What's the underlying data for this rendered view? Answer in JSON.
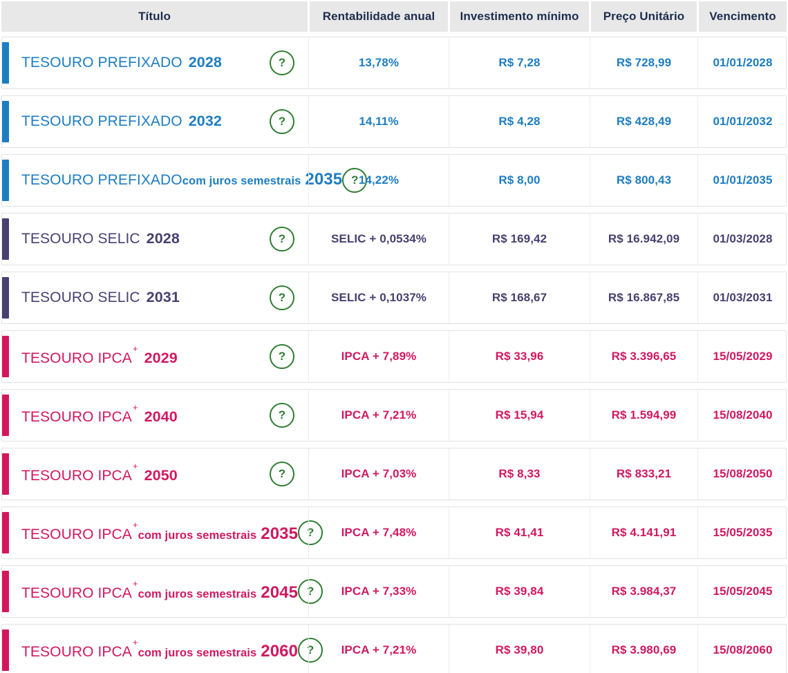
{
  "colors": {
    "prefixado": "#1d7dc1",
    "selic": "#474070",
    "ipca": "#d1185f",
    "help_green": "#2e7d32",
    "header_bg": "#e8e8e8",
    "header_text": "#1e2c4f"
  },
  "table": {
    "help_label": "?",
    "columns": [
      "Título",
      "Rentabilidade anual",
      "Investimento mínimo",
      "Preço Unitário",
      "Vencimento"
    ],
    "rows": [
      {
        "theme": "prefixado",
        "title_line1": "TESOURO PREFIXADO",
        "title_sup": "",
        "year_line1": "2028",
        "title_line2": "",
        "year_line2": "",
        "rate": "13,78%",
        "min_investment": "R$ 7,28",
        "unit_price": "R$ 728,99",
        "maturity": "01/01/2028"
      },
      {
        "theme": "prefixado",
        "title_line1": "TESOURO PREFIXADO",
        "title_sup": "",
        "year_line1": "2032",
        "title_line2": "",
        "year_line2": "",
        "rate": "14,11%",
        "min_investment": "R$ 4,28",
        "unit_price": "R$ 428,49",
        "maturity": "01/01/2032"
      },
      {
        "theme": "prefixado",
        "title_line1": "TESOURO PREFIXADO",
        "title_sup": "",
        "year_line1": "",
        "title_line2": "com juros semestrais",
        "year_line2": "2035",
        "rate": "14,22%",
        "min_investment": "R$ 8,00",
        "unit_price": "R$ 800,43",
        "maturity": "01/01/2035"
      },
      {
        "theme": "selic",
        "title_line1": "TESOURO SELIC",
        "title_sup": "",
        "year_line1": "2028",
        "title_line2": "",
        "year_line2": "",
        "rate": "SELIC + 0,0534%",
        "min_investment": "R$ 169,42",
        "unit_price": "R$ 16.942,09",
        "maturity": "01/03/2028"
      },
      {
        "theme": "selic",
        "title_line1": "TESOURO SELIC",
        "title_sup": "",
        "year_line1": "2031",
        "title_line2": "",
        "year_line2": "",
        "rate": "SELIC + 0,1037%",
        "min_investment": "R$ 168,67",
        "unit_price": "R$ 16.867,85",
        "maturity": "01/03/2031"
      },
      {
        "theme": "ipca",
        "title_line1": "TESOURO IPCA",
        "title_sup": "+",
        "year_line1": "2029",
        "title_line2": "",
        "year_line2": "",
        "rate": "IPCA + 7,89%",
        "min_investment": "R$ 33,96",
        "unit_price": "R$ 3.396,65",
        "maturity": "15/05/2029"
      },
      {
        "theme": "ipca",
        "title_line1": "TESOURO IPCA",
        "title_sup": "+",
        "year_line1": "2040",
        "title_line2": "",
        "year_line2": "",
        "rate": "IPCA + 7,21%",
        "min_investment": "R$ 15,94",
        "unit_price": "R$ 1.594,99",
        "maturity": "15/08/2040"
      },
      {
        "theme": "ipca",
        "title_line1": "TESOURO IPCA",
        "title_sup": "+",
        "year_line1": "2050",
        "title_line2": "",
        "year_line2": "",
        "rate": "IPCA + 7,03%",
        "min_investment": "R$ 8,33",
        "unit_price": "R$ 833,21",
        "maturity": "15/08/2050"
      },
      {
        "theme": "ipca",
        "title_line1": "TESOURO IPCA",
        "title_sup": "+",
        "year_line1": "",
        "title_line2": "com juros semestrais",
        "year_line2": "2035",
        "rate": "IPCA + 7,48%",
        "min_investment": "R$ 41,41",
        "unit_price": "R$ 4.141,91",
        "maturity": "15/05/2035"
      },
      {
        "theme": "ipca",
        "title_line1": "TESOURO IPCA",
        "title_sup": "+",
        "year_line1": "",
        "title_line2": "com juros semestrais",
        "year_line2": "2045",
        "rate": "IPCA + 7,33%",
        "min_investment": "R$ 39,84",
        "unit_price": "R$ 3.984,37",
        "maturity": "15/05/2045"
      },
      {
        "theme": "ipca",
        "title_line1": "TESOURO IPCA",
        "title_sup": "+",
        "year_line1": "",
        "title_line2": "com juros semestrais",
        "year_line2": "2060",
        "rate": "IPCA + 7,21%",
        "min_investment": "R$ 39,80",
        "unit_price": "R$ 3.980,69",
        "maturity": "15/08/2060"
      }
    ]
  }
}
